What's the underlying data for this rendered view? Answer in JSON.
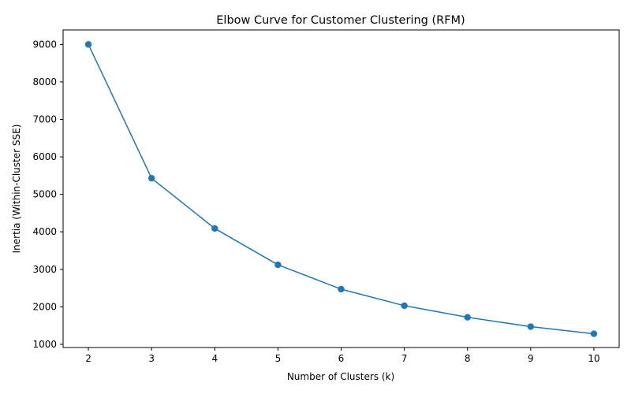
{
  "chart_data": {
    "type": "line",
    "title": "Elbow Curve for Customer Clustering (RFM)",
    "xlabel": "Number of Clusters (k)",
    "ylabel": "Inertia (Within-Cluster SSE)",
    "x": [
      2,
      3,
      4,
      5,
      6,
      7,
      8,
      9,
      10
    ],
    "series": [
      {
        "values": [
          9000,
          5430,
          4090,
          3120,
          2470,
          2030,
          1720,
          1470,
          1280
        ],
        "color": "#1f77b4",
        "marker": "circle"
      }
    ],
    "xticks": [
      2,
      3,
      4,
      5,
      6,
      7,
      8,
      9,
      10
    ],
    "yticks": [
      1000,
      2000,
      3000,
      4000,
      5000,
      6000,
      7000,
      8000,
      9000
    ],
    "xlim": [
      1.6,
      10.4
    ],
    "ylim": [
      914,
      9386
    ],
    "grid": false,
    "legend": false
  }
}
